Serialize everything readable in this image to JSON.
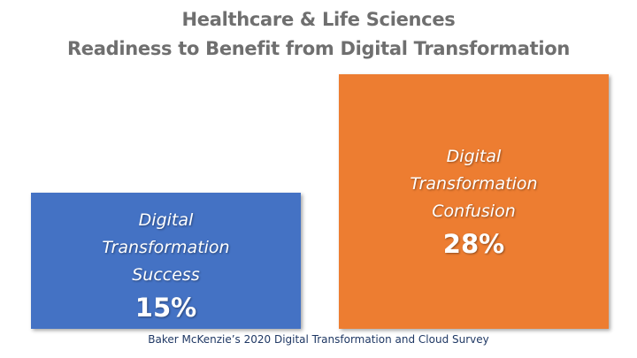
{
  "chart_data": {
    "type": "bar",
    "title": "Healthcare & Life Sciences",
    "subtitle": "Readiness to Benefit from Digital Transformation",
    "categories": [
      "Digital Transformation Success",
      "Digital Transformation Confusion"
    ],
    "category_lines": [
      [
        "Digital",
        "Transformation",
        "Success"
      ],
      [
        "Digital",
        "Transformation",
        "Confusion"
      ]
    ],
    "values": [
      15,
      28
    ],
    "value_labels": [
      "15%",
      "28%"
    ],
    "colors": [
      "#4472c4",
      "#ed7d31"
    ],
    "grid": false,
    "source": "Baker McKenzie’s 2020 Digital Transformation and Cloud Survey"
  }
}
